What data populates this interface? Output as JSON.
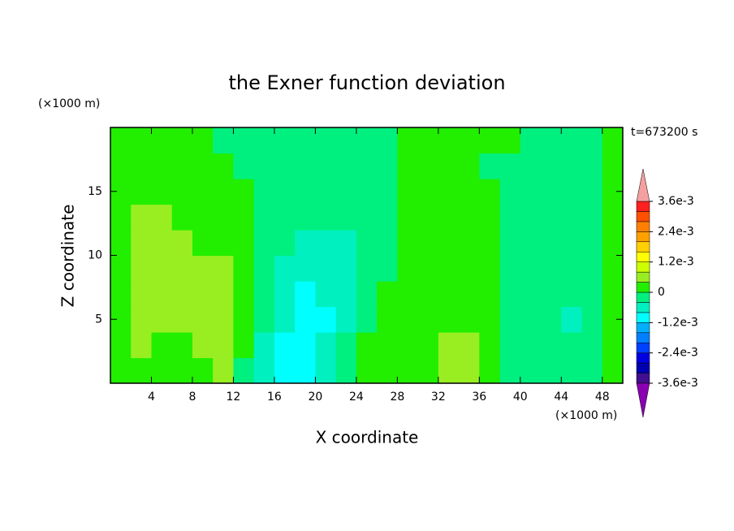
{
  "chart_data": {
    "type": "contour",
    "title": "the Exner function deviation",
    "xlabel": "X coordinate",
    "ylabel": "Z coordinate",
    "xunit": "(×1000 m)",
    "yunit": "(×1000 m)",
    "annotation": "t=673200 s",
    "xlim": [
      0,
      50
    ],
    "ylim": [
      0,
      20
    ],
    "xticks": [
      4,
      8,
      12,
      16,
      20,
      24,
      28,
      32,
      36,
      40,
      44,
      48
    ],
    "yticks": [
      5,
      10,
      15
    ],
    "x": [
      1,
      3,
      5,
      7,
      9,
      11,
      13,
      15,
      17,
      19,
      21,
      23,
      25,
      27,
      29,
      31,
      33,
      35,
      37,
      39,
      41,
      43,
      45,
      47,
      49
    ],
    "y": [
      1,
      3,
      5,
      7,
      9,
      11,
      13,
      15,
      17,
      19
    ],
    "z": [
      [
        0.0002,
        0.0002,
        0.0002,
        0.0002,
        0.0002,
        0.0006,
        -0.0002,
        -0.0006,
        -0.001,
        -0.001,
        -0.0006,
        -0.0002,
        0.0002,
        0.0002,
        0.0002,
        0.0002,
        0.0006,
        0.0006,
        0.0002,
        -0.0002,
        -0.0002,
        -0.0002,
        -0.0002,
        -0.0002,
        0.0002
      ],
      [
        0.0002,
        0.0006,
        0.0002,
        0.0002,
        0.0006,
        0.0006,
        0.0002,
        -0.0006,
        -0.001,
        -0.001,
        -0.0006,
        -0.0002,
        0.0002,
        0.0002,
        0.0002,
        0.0002,
        0.0006,
        0.0006,
        0.0002,
        -0.0002,
        -0.0002,
        -0.0002,
        -0.0002,
        -0.0002,
        0.0002
      ],
      [
        0.0002,
        0.0006,
        0.0006,
        0.0006,
        0.0006,
        0.0006,
        0.0002,
        -0.0002,
        -0.0006,
        -0.001,
        -0.001,
        -0.0006,
        -0.0002,
        0.0002,
        0.0002,
        0.0002,
        0.0002,
        0.0002,
        0.0002,
        -0.0002,
        -0.0002,
        -0.0002,
        -0.0006,
        -0.0002,
        0.0002
      ],
      [
        0.0002,
        0.0006,
        0.0006,
        0.0006,
        0.0006,
        0.0006,
        0.0002,
        -0.0002,
        -0.0006,
        -0.001,
        -0.0006,
        -0.0006,
        -0.0002,
        0.0002,
        0.0002,
        0.0002,
        0.0002,
        0.0002,
        0.0002,
        -0.0002,
        -0.0002,
        -0.0002,
        -0.0002,
        -0.0002,
        0.0002
      ],
      [
        0.0002,
        0.0006,
        0.0006,
        0.0006,
        0.0006,
        0.0006,
        0.0002,
        -0.0002,
        -0.0006,
        -0.0006,
        -0.0006,
        -0.0006,
        -0.0002,
        -0.0002,
        0.0002,
        0.0002,
        0.0002,
        0.0002,
        0.0002,
        -0.0002,
        -0.0002,
        -0.0002,
        -0.0002,
        -0.0002,
        0.0002
      ],
      [
        0.0002,
        0.0006,
        0.0006,
        0.0006,
        0.0002,
        0.0002,
        0.0002,
        -0.0002,
        -0.0002,
        -0.0006,
        -0.0006,
        -0.0006,
        -0.0002,
        -0.0002,
        0.0002,
        0.0002,
        0.0002,
        0.0002,
        0.0002,
        -0.0002,
        -0.0002,
        -0.0002,
        -0.0002,
        -0.0002,
        0.0002
      ],
      [
        0.0002,
        0.0006,
        0.0006,
        0.0002,
        0.0002,
        0.0002,
        0.0002,
        -0.0002,
        -0.0002,
        -0.0002,
        -0.0002,
        -0.0002,
        -0.0002,
        -0.0002,
        0.0002,
        0.0002,
        0.0002,
        0.0002,
        0.0002,
        -0.0002,
        -0.0002,
        -0.0002,
        -0.0002,
        -0.0002,
        0.0002
      ],
      [
        0.0002,
        0.0002,
        0.0002,
        0.0002,
        0.0002,
        0.0002,
        0.0002,
        -0.0002,
        -0.0002,
        -0.0002,
        -0.0002,
        -0.0002,
        -0.0002,
        -0.0002,
        0.0002,
        0.0002,
        0.0002,
        0.0002,
        0.0002,
        -0.0002,
        -0.0002,
        -0.0002,
        -0.0002,
        -0.0002,
        0.0002
      ],
      [
        0.0002,
        0.0002,
        0.0002,
        0.0002,
        0.0002,
        0.0002,
        -0.0002,
        -0.0002,
        -0.0002,
        -0.0002,
        -0.0002,
        -0.0002,
        -0.0002,
        -0.0002,
        0.0002,
        0.0002,
        0.0002,
        0.0002,
        -0.0002,
        -0.0002,
        -0.0002,
        -0.0002,
        -0.0002,
        -0.0002,
        0.0002
      ],
      [
        0.0002,
        0.0002,
        0.0002,
        0.0002,
        0.0002,
        -0.0002,
        -0.0002,
        -0.0002,
        -0.0002,
        -0.0002,
        -0.0002,
        -0.0002,
        -0.0002,
        -0.0002,
        0.0002,
        0.0002,
        0.0002,
        0.0002,
        0.0002,
        0.0002,
        -0.0002,
        -0.0002,
        -0.0002,
        -0.0002,
        0.0002
      ]
    ],
    "levels": [
      -0.0036,
      -0.0032,
      -0.0028,
      -0.0024,
      -0.002,
      -0.0016,
      -0.0012,
      -0.0008,
      -0.0004,
      0,
      0.0004,
      0.0008,
      0.0012,
      0.0016,
      0.002,
      0.0024,
      0.0028,
      0.0032,
      0.0036
    ],
    "colors": [
      "#8a00b0",
      "#401090",
      "#0000b0",
      "#0000e0",
      "#0040ff",
      "#0080ff",
      "#00b0ff",
      "#00ffff",
      "#00f0c0",
      "#00f080",
      "#22ee00",
      "#99ee22",
      "#ccff00",
      "#ffff00",
      "#ffd000",
      "#ffa000",
      "#ff8000",
      "#ff5000",
      "#ff2020",
      "#f4a0a0"
    ],
    "cticks": [
      {
        "value": 0.0036,
        "label": "3.6e-3"
      },
      {
        "value": 0.0024,
        "label": "2.4e-3"
      },
      {
        "value": 0.0012,
        "label": "1.2e-3"
      },
      0,
      {
        "value": -0.0012,
        "label": "-1.2e-3"
      },
      {
        "value": -0.0024,
        "label": "-2.4e-3"
      },
      {
        "value": -0.0036,
        "label": "-3.6e-3"
      }
    ]
  }
}
